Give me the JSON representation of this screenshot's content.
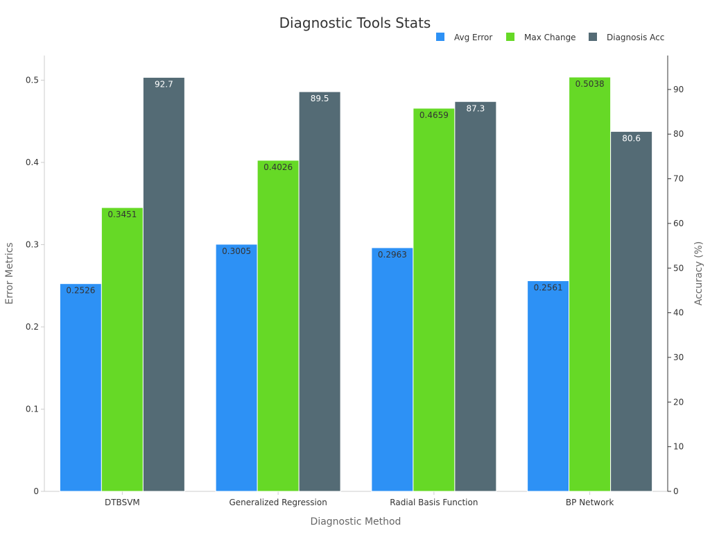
{
  "chart_data": {
    "type": "bar",
    "title": "Diagnostic Tools Stats",
    "xlabel": "Diagnostic Method",
    "ylabel": "Error Metrics",
    "y2label": "Accuracy (%)",
    "categories": [
      "DTBSVM",
      "Generalized Regression",
      "Radial Basis Function",
      "BP Network"
    ],
    "ylim": [
      0,
      0.53
    ],
    "y2lim": [
      0,
      97.6
    ],
    "yticks": [
      "0",
      "0.1",
      "0.2",
      "0.3",
      "0.4",
      "0.5"
    ],
    "y2ticks": [
      "0",
      "10",
      "20",
      "30",
      "40",
      "50",
      "60",
      "70",
      "80",
      "90"
    ],
    "legend_position": "top-right",
    "grid": false,
    "series": [
      {
        "name": "Avg Error",
        "axis": "left",
        "color": "#2d91f5",
        "values": [
          0.2526,
          0.3005,
          0.2963,
          0.2561
        ],
        "labels": [
          "0.2526",
          "0.3005",
          "0.2963",
          "0.2561"
        ]
      },
      {
        "name": "Max Change",
        "axis": "left",
        "color": "#66d926",
        "values": [
          0.3451,
          0.4026,
          0.4659,
          0.5038
        ],
        "labels": [
          "0.3451",
          "0.4026",
          "0.4659",
          "0.5038"
        ]
      },
      {
        "name": "Diagnosis Acc",
        "axis": "right",
        "color": "#546b75",
        "values": [
          92.7,
          89.5,
          87.3,
          80.6
        ],
        "labels": [
          "92.7",
          "89.5",
          "87.3",
          "80.6"
        ]
      }
    ]
  }
}
